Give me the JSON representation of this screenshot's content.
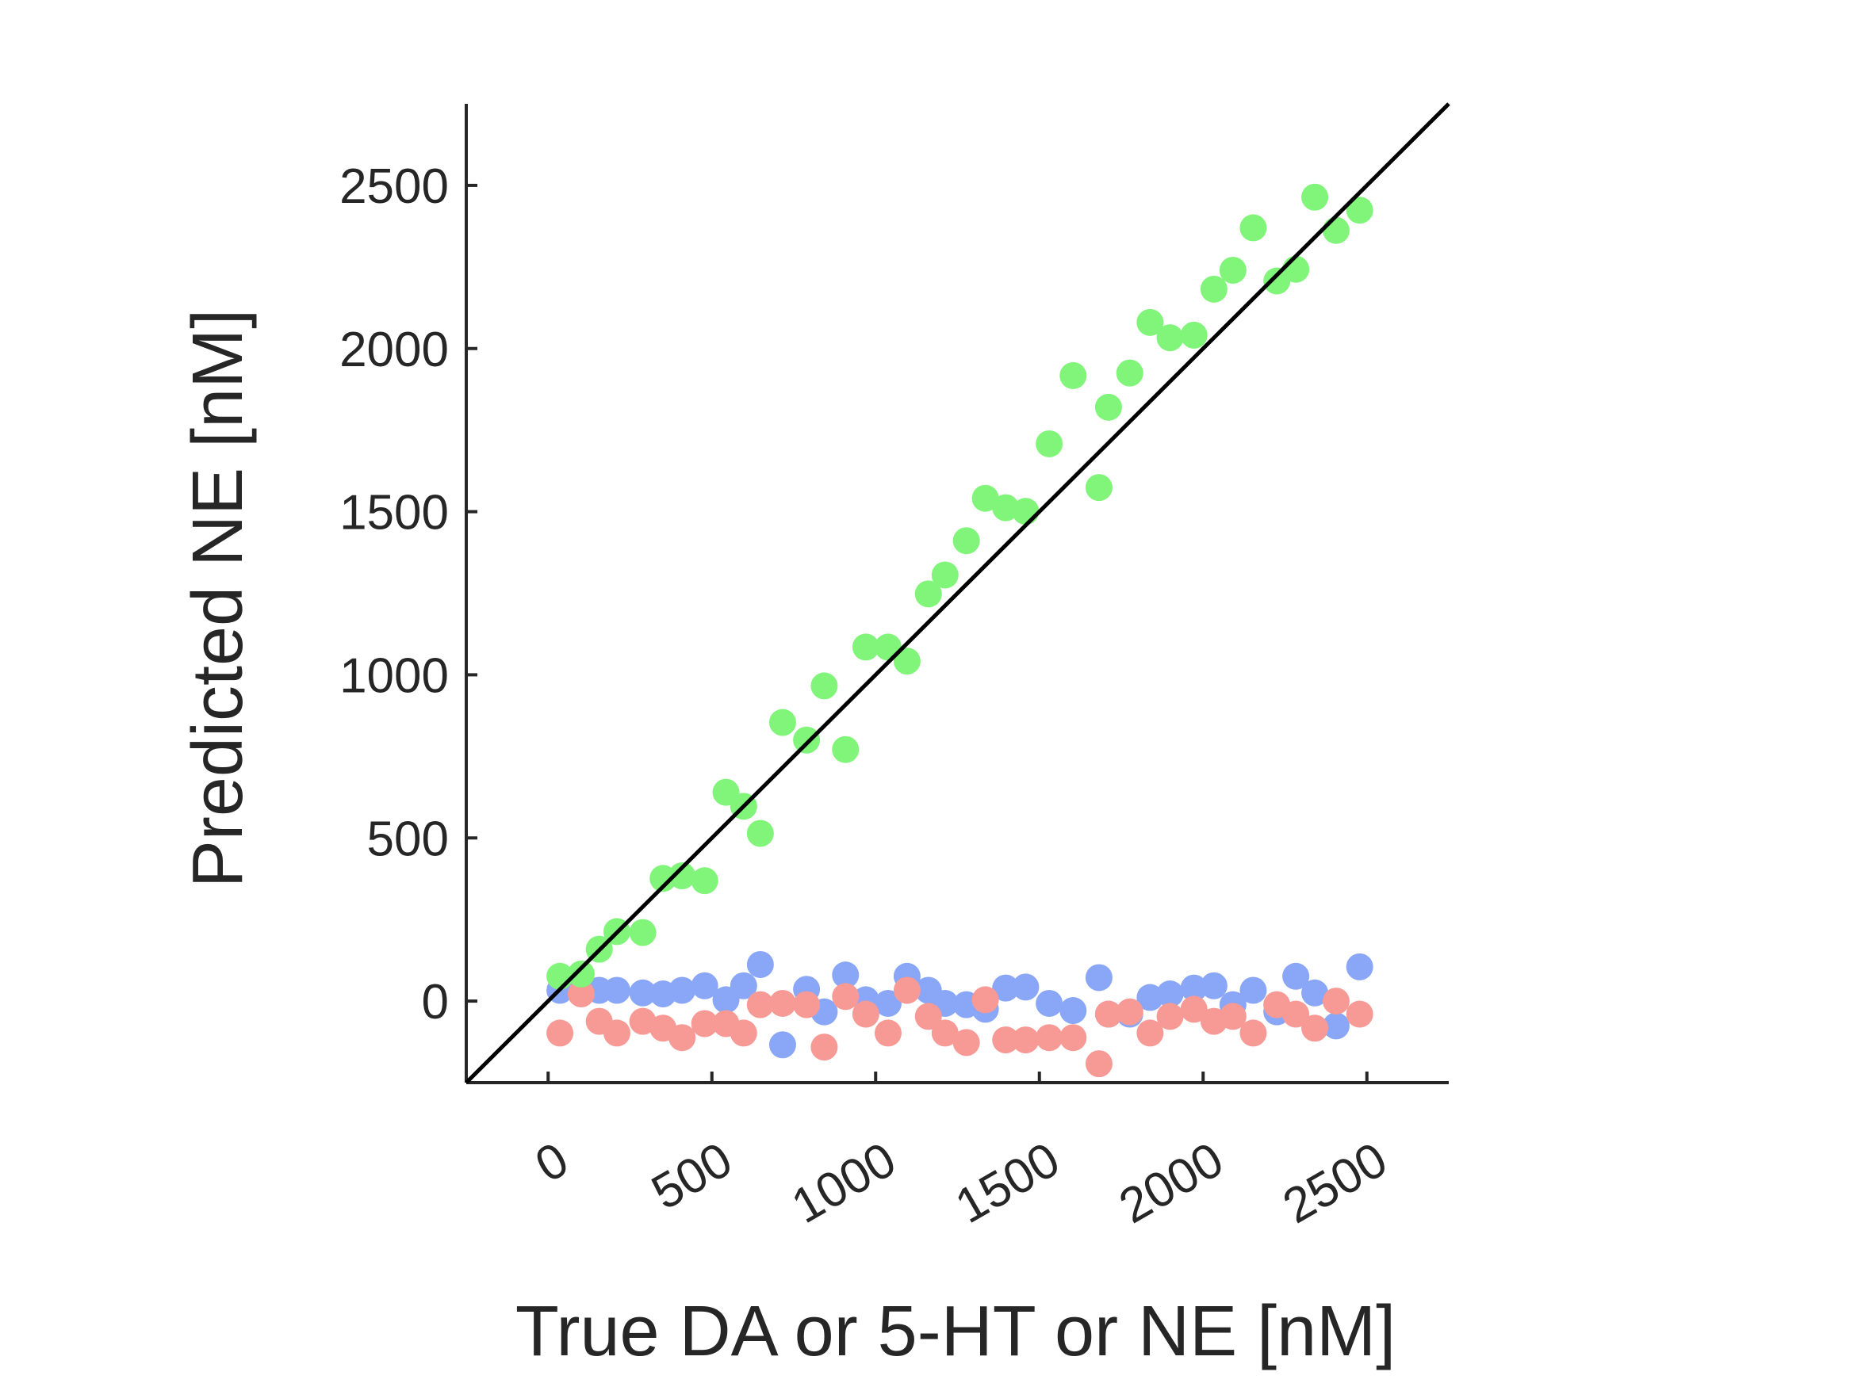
{
  "chart_data": {
    "type": "scatter",
    "xlabel": "True DA or 5-HT or NE [nM]",
    "ylabel": "Predicted NE [nM]",
    "x": [
      36,
      101,
      156,
      210,
      289,
      351,
      409,
      478,
      543,
      597,
      648,
      716,
      789,
      843,
      908,
      970,
      1038,
      1096,
      1161,
      1212,
      1277,
      1335,
      1397,
      1458,
      1530,
      1603,
      1682,
      1711,
      1776,
      1838,
      1899,
      1972,
      2033,
      2091,
      2153,
      2225,
      2283,
      2341,
      2406,
      2478
    ],
    "series": [
      {
        "color": "#8aa6f7",
        "values": [
          33,
          40,
          33,
          33,
          25,
          22,
          33,
          47,
          4,
          47,
          112,
          -134,
          36,
          -33,
          80,
          4,
          -7,
          76,
          33,
          -7,
          -11,
          -25,
          40,
          43,
          -7,
          -29,
          72,
          -40,
          -40,
          11,
          22,
          40,
          47,
          -11,
          33,
          -33,
          76,
          25,
          -76,
          105
        ]
      },
      {
        "color": "#f79a96",
        "values": [
          -98,
          22,
          -62,
          -98,
          -62,
          -83,
          -112,
          -69,
          -69,
          -98,
          -11,
          -7,
          -11,
          -141,
          14,
          -40,
          -98,
          33,
          -47,
          -98,
          -127,
          4,
          -119,
          -119,
          -112,
          -112,
          -192,
          -40,
          -33,
          -98,
          -47,
          -25,
          -62,
          -47,
          -98,
          -11,
          -40,
          -83,
          0,
          -40
        ]
      },
      {
        "color": "#80f57a",
        "values": [
          76,
          83,
          159,
          213,
          210,
          376,
          384,
          369,
          640,
          597,
          514,
          854,
          800,
          966,
          771,
          1085,
          1085,
          1042,
          1248,
          1306,
          1411,
          1541,
          1512,
          1501,
          1708,
          1917,
          1574,
          1820,
          1925,
          2080,
          2033,
          2041,
          2182,
          2240,
          2370,
          2207,
          2243,
          2464,
          2362,
          2424
        ]
      }
    ],
    "xlim": [
      -250,
      2750
    ],
    "ylim": [
      -250,
      2750
    ],
    "xticks": [
      0,
      500,
      1000,
      1500,
      2000,
      2500
    ],
    "yticks": [
      0,
      500,
      1000,
      1500,
      2000,
      2500
    ],
    "identity_line": true
  }
}
